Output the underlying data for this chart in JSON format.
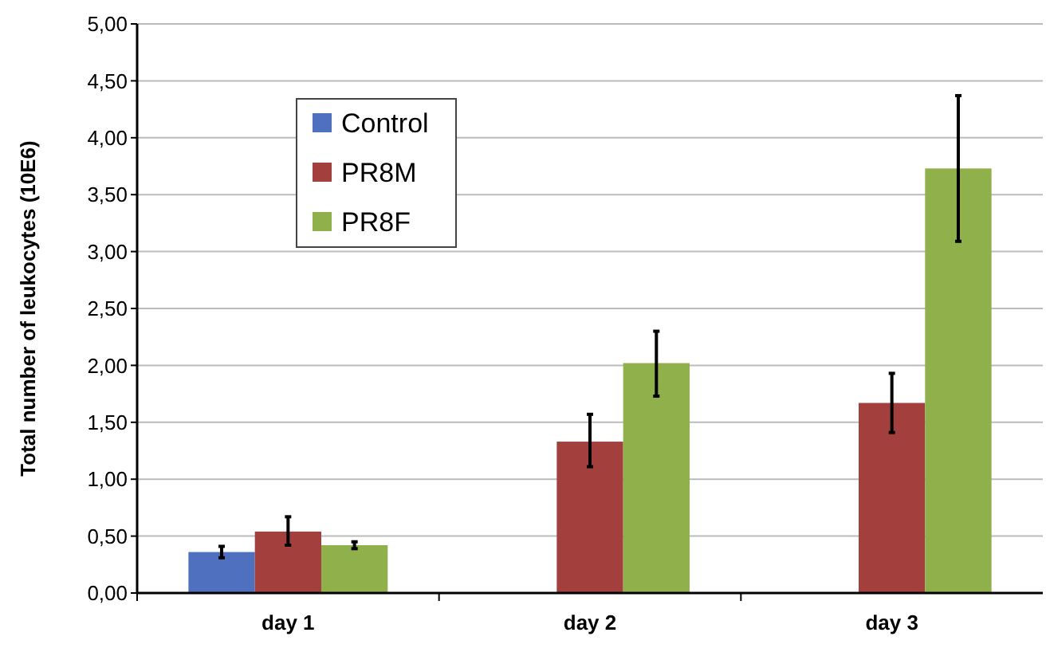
{
  "chart_data": {
    "type": "bar",
    "ylabel": "Total number of leukocytes (10E6)",
    "categories": [
      "day 1",
      "day 2",
      "day 3"
    ],
    "series": [
      {
        "name": "Control",
        "color": "#4f6fbf",
        "values": [
          0.36,
          null,
          null
        ],
        "errors": [
          [
            0.31,
            0.41
          ],
          null,
          null
        ]
      },
      {
        "name": "PR8M",
        "color": "#a3403d",
        "values": [
          0.54,
          1.33,
          1.67
        ],
        "errors": [
          [
            0.42,
            0.67
          ],
          [
            1.11,
            1.57
          ],
          [
            1.41,
            1.93
          ]
        ]
      },
      {
        "name": "PR8F",
        "color": "#8fb04a",
        "values": [
          0.42,
          2.02,
          3.73
        ],
        "errors": [
          [
            0.39,
            0.45
          ],
          [
            1.73,
            2.3
          ],
          [
            3.09,
            4.37
          ]
        ]
      }
    ],
    "ylim": [
      0,
      5
    ],
    "yticks": [
      {
        "value": 0,
        "label": "0,00"
      },
      {
        "value": 0.5,
        "label": "0,50"
      },
      {
        "value": 1,
        "label": "1,00"
      },
      {
        "value": 1.5,
        "label": "1,50"
      },
      {
        "value": 2,
        "label": "2,00"
      },
      {
        "value": 2.5,
        "label": "2,50"
      },
      {
        "value": 3,
        "label": "3,00"
      },
      {
        "value": 3.5,
        "label": "3,50"
      },
      {
        "value": 4,
        "label": "4,00"
      },
      {
        "value": 4.5,
        "label": "4,50"
      },
      {
        "value": 5,
        "label": "5,00"
      }
    ],
    "grid": "y",
    "legend": "top left"
  }
}
